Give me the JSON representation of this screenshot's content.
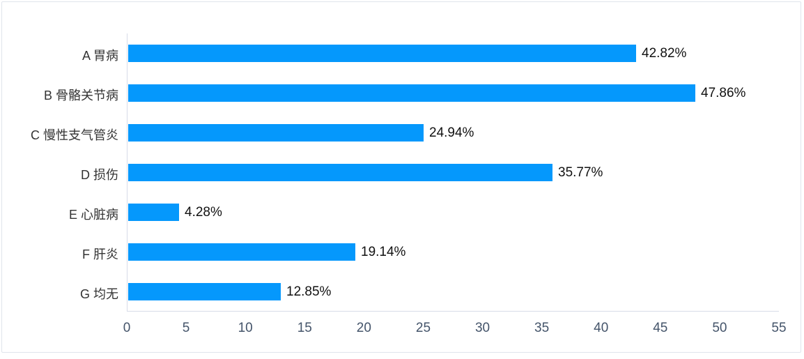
{
  "panel": {
    "border_color": "#e0e4ec"
  },
  "style": {
    "bar_color": "#0598fc",
    "axis_line_color": "#d7dce8",
    "category_text_color": "#333333",
    "value_text_color": "#111111",
    "tick_text_color": "#44546a"
  },
  "chart_data": {
    "type": "bar",
    "orientation": "horizontal",
    "title": "",
    "xlabel": "",
    "ylabel": "",
    "categories": [
      "A 胃病",
      "B 骨骼关节病",
      "C 慢性支气管炎",
      "D 损伤",
      "E 心脏病",
      "F 肝炎",
      "G 均无"
    ],
    "values": [
      42.82,
      47.86,
      24.94,
      35.77,
      4.28,
      19.14,
      12.85
    ],
    "value_labels": [
      "42.82%",
      "47.86%",
      "24.94%",
      "35.77%",
      "4.28%",
      "19.14%",
      "12.85%"
    ],
    "xlim": [
      0,
      55
    ],
    "x_ticks": [
      0,
      5,
      10,
      15,
      20,
      25,
      30,
      35,
      40,
      45,
      50,
      55
    ],
    "grid": false,
    "legend": false
  }
}
